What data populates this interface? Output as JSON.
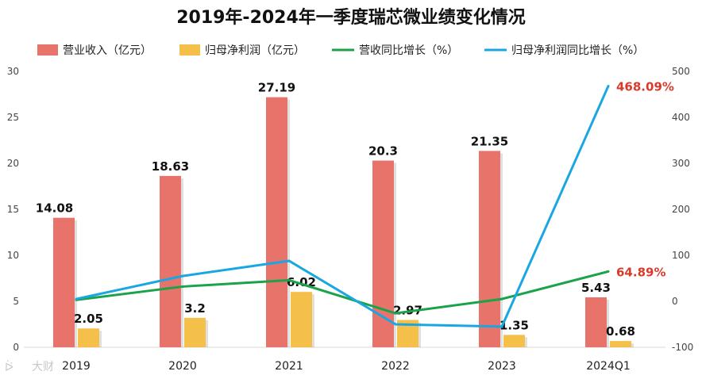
{
  "chart_data": {
    "type": "bar",
    "title": "2019年-2024年一季度瑞芯微业绩变化情况",
    "categories": [
      "2019",
      "2020",
      "2021",
      "2022",
      "2023",
      "2024Q1"
    ],
    "series": [
      {
        "name": "营业收入（亿元）",
        "kind": "bar",
        "axis": "left",
        "color": "#e8736b",
        "values": [
          14.08,
          18.63,
          27.19,
          20.3,
          21.35,
          5.43
        ],
        "labels": [
          "14.08",
          "18.63",
          "27.19",
          "20.3",
          "21.35",
          "5.43"
        ]
      },
      {
        "name": "归母净利润（亿元）",
        "kind": "bar",
        "axis": "left",
        "color": "#f5c04a",
        "values": [
          2.05,
          3.2,
          6.02,
          2.97,
          1.35,
          0.68
        ],
        "labels": [
          "2.05",
          "3.2",
          "6.02",
          "2.97",
          "1.35",
          "0.68"
        ]
      },
      {
        "name": "营收同比增长（%）",
        "kind": "line",
        "axis": "right",
        "color": "#1aa34a",
        "values": [
          3,
          32,
          46,
          -26,
          5,
          64.89
        ],
        "last_label": "64.89%"
      },
      {
        "name": "归母净利润同比增长（%）",
        "kind": "line",
        "axis": "right",
        "color": "#1aa7e1",
        "values": [
          5,
          55,
          88,
          -50,
          -55,
          468.09
        ],
        "last_label": "468.09%"
      }
    ],
    "y_left": {
      "min": 0,
      "max": 30,
      "ticks": [
        "0",
        "5",
        "10",
        "15",
        "20",
        "25",
        "30"
      ]
    },
    "y_right": {
      "min": -100,
      "max": 500,
      "ticks": [
        "-100",
        "0",
        "100",
        "200",
        "300",
        "400",
        "500"
      ]
    },
    "legend_position": "top",
    "grid": false,
    "highlight_color": "#d93b2b"
  },
  "watermark": "大财"
}
